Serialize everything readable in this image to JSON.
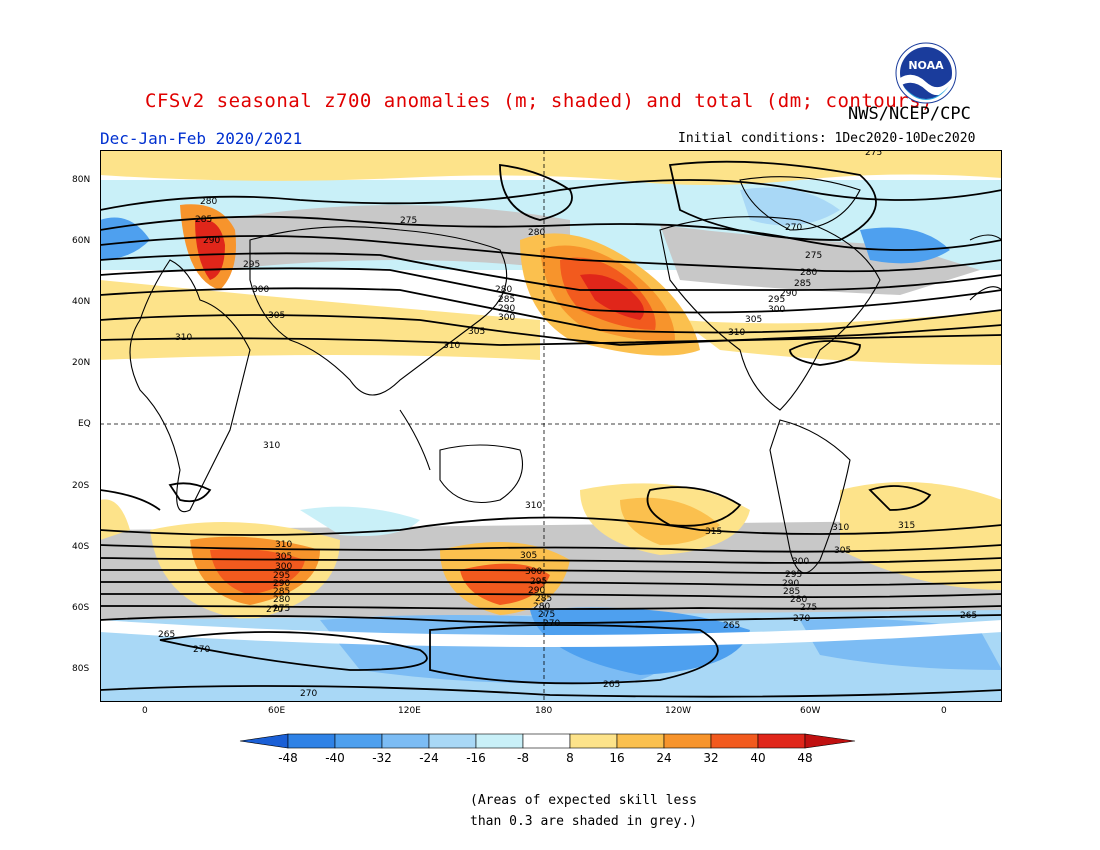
{
  "header": {
    "title": "CFSv2 seasonal z700 anomalies (m; shaded) and total (dm; contours)",
    "org": "NWS/NCEP/CPC",
    "season": "Dec-Jan-Feb 2020/2021",
    "initial_conditions": "Initial conditions: 1Dec2020-10Dec2020",
    "logo_text": "NOAA"
  },
  "map": {
    "lat_labels": [
      "80N",
      "60N",
      "40N",
      "20N",
      "EQ",
      "20S",
      "40S",
      "60S",
      "80S"
    ],
    "lon_labels": [
      "0",
      "60E",
      "120E",
      "180",
      "120W",
      "60W",
      "0"
    ],
    "contour_labels": [
      "275",
      "280",
      "285",
      "290",
      "295",
      "300",
      "305",
      "310",
      "315",
      "270",
      "265"
    ]
  },
  "legend": {
    "ticks": [
      "-48",
      "-40",
      "-32",
      "-24",
      "-16",
      "-8",
      "8",
      "16",
      "24",
      "32",
      "40",
      "48"
    ],
    "colors": [
      "#1a5fd6",
      "#2f82e6",
      "#4ea0ef",
      "#7cbcf4",
      "#a9d8f6",
      "#c9f0f8",
      "#ffffff",
      "#fde38a",
      "#fbc04e",
      "#f7942c",
      "#f25a1e",
      "#e0261a",
      "#c01010"
    ]
  },
  "note": {
    "line1": "(Areas of expected skill less",
    "line2": "than 0.3 are shaded in grey.)"
  }
}
